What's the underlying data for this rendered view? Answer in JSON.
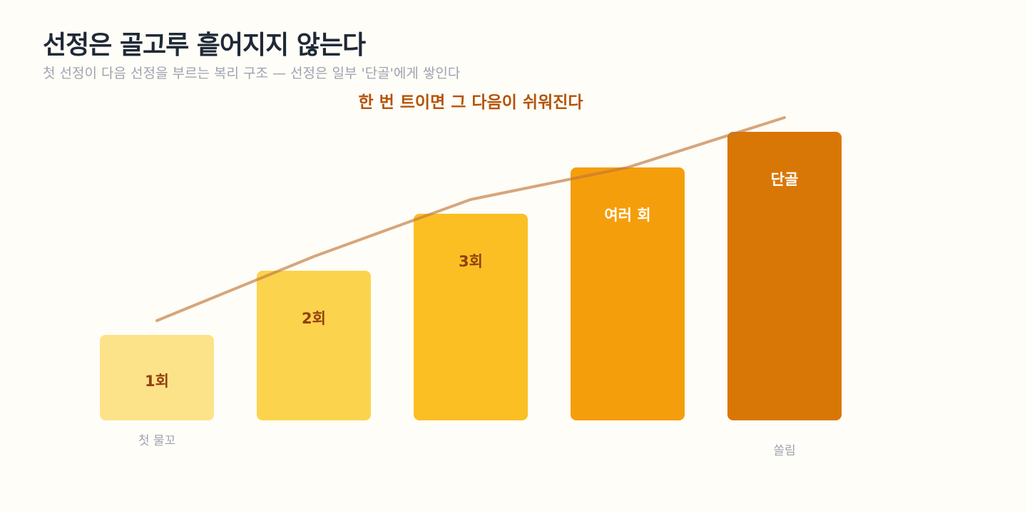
{
  "title": "선정은 골고루 흩어지지 않는다",
  "subtitle": "첫 선정이 다음 선정을 부르는 복리 구조 — 선정은 일부 '단골'에게 쌓인다",
  "chart_data": {
    "type": "bar",
    "title": "선정은 골고루 흩어지지 않는다",
    "subtitle": "첫 선정이 다음 선정을 부르는 복리 구조 — 선정은 일부 '단골'에게 쌓인다",
    "annotation": "한 번 트이면 그 다음이 쉬워진다",
    "categories": [
      "1회",
      "2회",
      "3회",
      "여러 회",
      "단골"
    ],
    "values": [
      1.2,
      2.1,
      2.9,
      3.55,
      4.05
    ],
    "trend": [
      1.4,
      2.3,
      3.1,
      3.55,
      4.25
    ],
    "axis_labels": [
      "첫 물꼬",
      "",
      "",
      "",
      "쏠림"
    ],
    "colors": [
      "#fce38a",
      "#fcd34d",
      "#fbbf24",
      "#f59e0b",
      "#d97706"
    ],
    "label_colors": [
      "#92400e",
      "#92400e",
      "#92400e",
      "#ffffff",
      "#ffffff"
    ],
    "trend_color": "#c2763a",
    "ylim": [
      0,
      4.5
    ],
    "grid": false,
    "legend": "none"
  }
}
